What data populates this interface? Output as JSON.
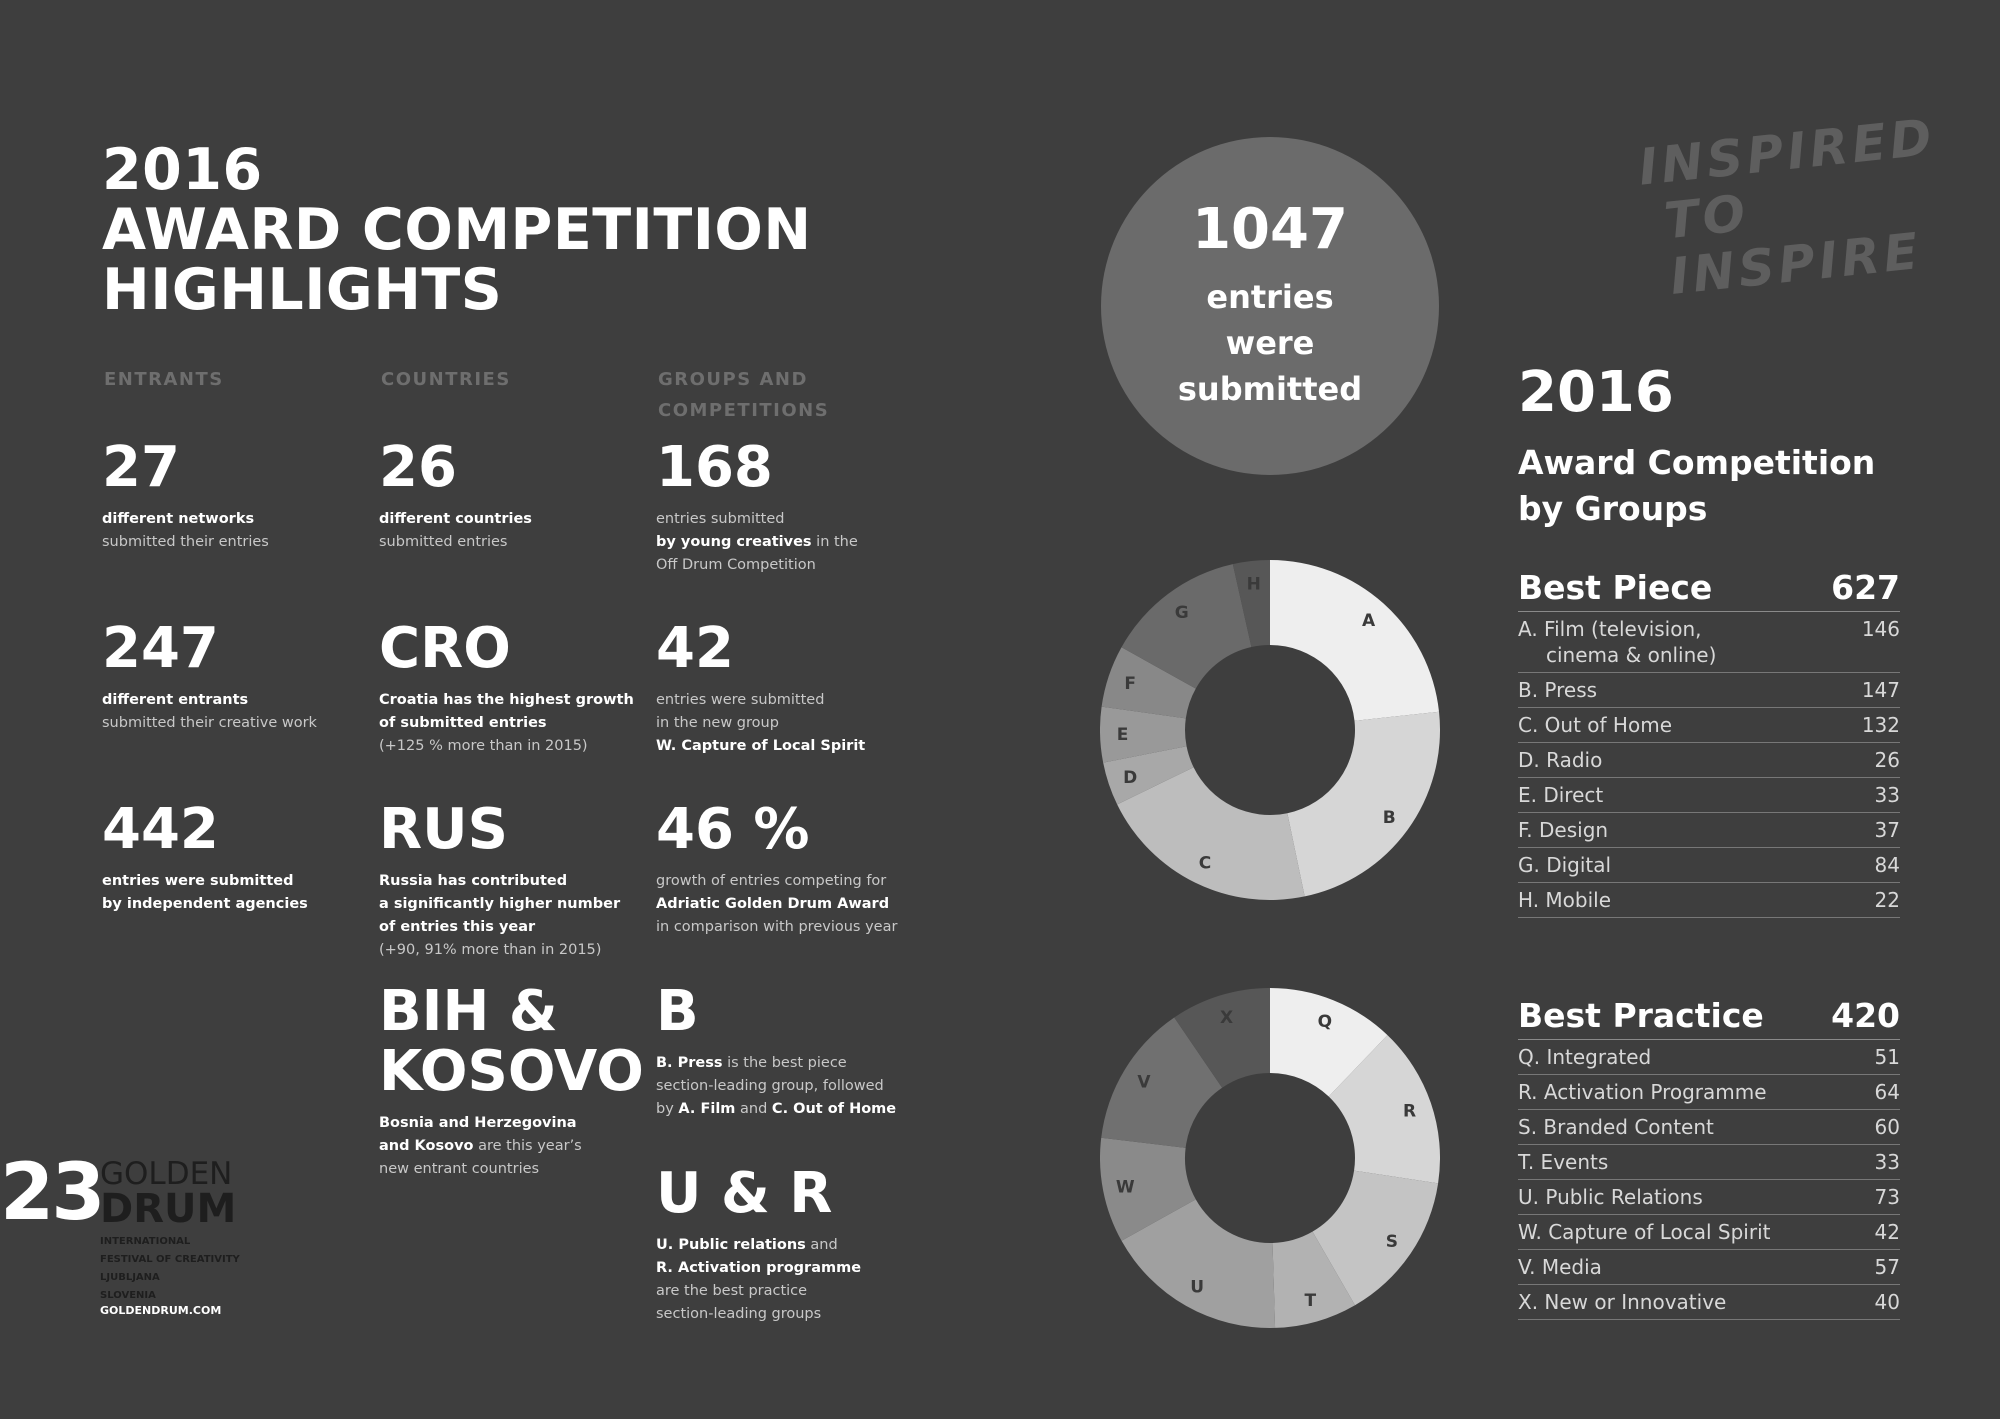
{
  "title": [
    "2016",
    "AWARD COMPETITION",
    "HIGHLIGHTS"
  ],
  "columns": {
    "entrants": "ENTRANTS",
    "countries": "COUNTRIES",
    "groups": [
      "GROUPS AND",
      "COMPETITIONS"
    ]
  },
  "stats": {
    "s1": {
      "value": "27",
      "lines": [
        [
          "b",
          "different networks"
        ],
        [
          "n",
          "submitted their entries"
        ]
      ]
    },
    "s2": {
      "value": "26",
      "lines": [
        [
          "b",
          "different countries"
        ],
        [
          "n",
          "submitted entries"
        ]
      ]
    },
    "s3": {
      "value": "168",
      "lines": [
        [
          "n",
          "entries submitted"
        ],
        [
          "bn",
          "by young creatives",
          " in the"
        ],
        [
          "n",
          "Off Drum Competition"
        ]
      ]
    },
    "s4": {
      "value": "247",
      "lines": [
        [
          "b",
          "different entrants"
        ],
        [
          "n",
          "submitted their creative work"
        ]
      ]
    },
    "s5": {
      "value": "CRO",
      "lines": [
        [
          "b",
          "Croatia has the highest growth"
        ],
        [
          "b",
          "of submitted entries"
        ],
        [
          "n",
          "(+125 % more than in 2015)"
        ]
      ]
    },
    "s6": {
      "value": "42",
      "lines": [
        [
          "n",
          "entries were submitted"
        ],
        [
          "n",
          "in the new group"
        ],
        [
          "b",
          "W. Capture of Local Spirit"
        ]
      ]
    },
    "s7": {
      "value": "442",
      "lines": [
        [
          "b",
          "entries were submitted"
        ],
        [
          "b",
          "by independent agencies"
        ]
      ]
    },
    "s8": {
      "value": "RUS",
      "lines": [
        [
          "b",
          "Russia has contributed"
        ],
        [
          "b",
          "a significantly higher number"
        ],
        [
          "b",
          "of entries this year"
        ],
        [
          "n",
          "(+90, 91% more than in 2015)"
        ]
      ]
    },
    "s9": {
      "value": "46 %",
      "lines": [
        [
          "n",
          "growth of entries competing for"
        ],
        [
          "b",
          "Adriatic Golden Drum Award"
        ],
        [
          "n",
          "in comparison with previous year"
        ]
      ]
    },
    "s10": {
      "value": [
        "BIH &",
        "KOSOVO"
      ],
      "lines": [
        [
          "b",
          "Bosnia and Herzegovina"
        ],
        [
          "bn",
          "and Kosovo",
          " are this year’s"
        ],
        [
          "n",
          "new entrant countries"
        ]
      ]
    },
    "s11": {
      "value": "B",
      "lines": [
        [
          "bn",
          "B. Press",
          " is the best piece"
        ],
        [
          "n",
          "section-leading group, followed"
        ],
        [
          "nbnb",
          "by ",
          "A. Film",
          " and ",
          "C. Out of Home"
        ]
      ]
    },
    "s12": {
      "value": "U & R",
      "lines": [
        [
          "bn",
          "U. Public relations",
          " and"
        ],
        [
          "b",
          "R. Activation programme"
        ],
        [
          "n",
          "are the best practice"
        ],
        [
          "n",
          "section-leading groups"
        ]
      ]
    }
  },
  "circle": {
    "number": "1047",
    "text": [
      "entries",
      "were",
      "submitted"
    ]
  },
  "tagline": [
    "INSPIRED",
    "TO INSPIRE"
  ],
  "right": {
    "year": "2016",
    "subtitle": [
      "Award Competition",
      "by Groups"
    ]
  },
  "logo": {
    "number": "23",
    "golden": "GOLDEN",
    "drum": "DRUM",
    "small": [
      "INTERNATIONAL",
      "FESTIVAL OF CREATIVITY",
      "LJUBLJANA",
      "SLOVENIA"
    ],
    "url": "GOLDENDRUM.COM"
  },
  "chart_data": [
    {
      "type": "pie",
      "title": "Best Piece",
      "total": 627,
      "categories": [
        "A",
        "B",
        "C",
        "D",
        "E",
        "F",
        "G",
        "H"
      ],
      "names": [
        "A. Film (television, cinema & online)",
        "B. Press",
        "C. Out of Home",
        "D. Radio",
        "E. Direct",
        "F. Design",
        "G. Digital",
        "H. Mobile"
      ],
      "values": [
        146,
        147,
        132,
        26,
        33,
        37,
        84,
        22
      ],
      "colors": [
        "#eeeeee",
        "#d6d6d6",
        "#bdbdbd",
        "#a8a8a8",
        "#999999",
        "#888888",
        "#6a6a6a",
        "#575757"
      ]
    },
    {
      "type": "pie",
      "title": "Best Practice",
      "total": 420,
      "categories": [
        "Q",
        "R",
        "S",
        "T",
        "U",
        "W",
        "V",
        "X"
      ],
      "names": [
        "Q. Integrated",
        "R. Activation Programme",
        "S. Branded Content",
        "T. Events",
        "U. Public Relations",
        "W. Capture of Local Spirit",
        "V. Media",
        "X. New or Innovative"
      ],
      "values": [
        51,
        64,
        60,
        33,
        73,
        42,
        57,
        40
      ],
      "colors": [
        "#eeeeee",
        "#d6d6d6",
        "#c4c4c4",
        "#b2b2b2",
        "#a0a0a0",
        "#8a8a8a",
        "#707070",
        "#575757"
      ]
    }
  ]
}
